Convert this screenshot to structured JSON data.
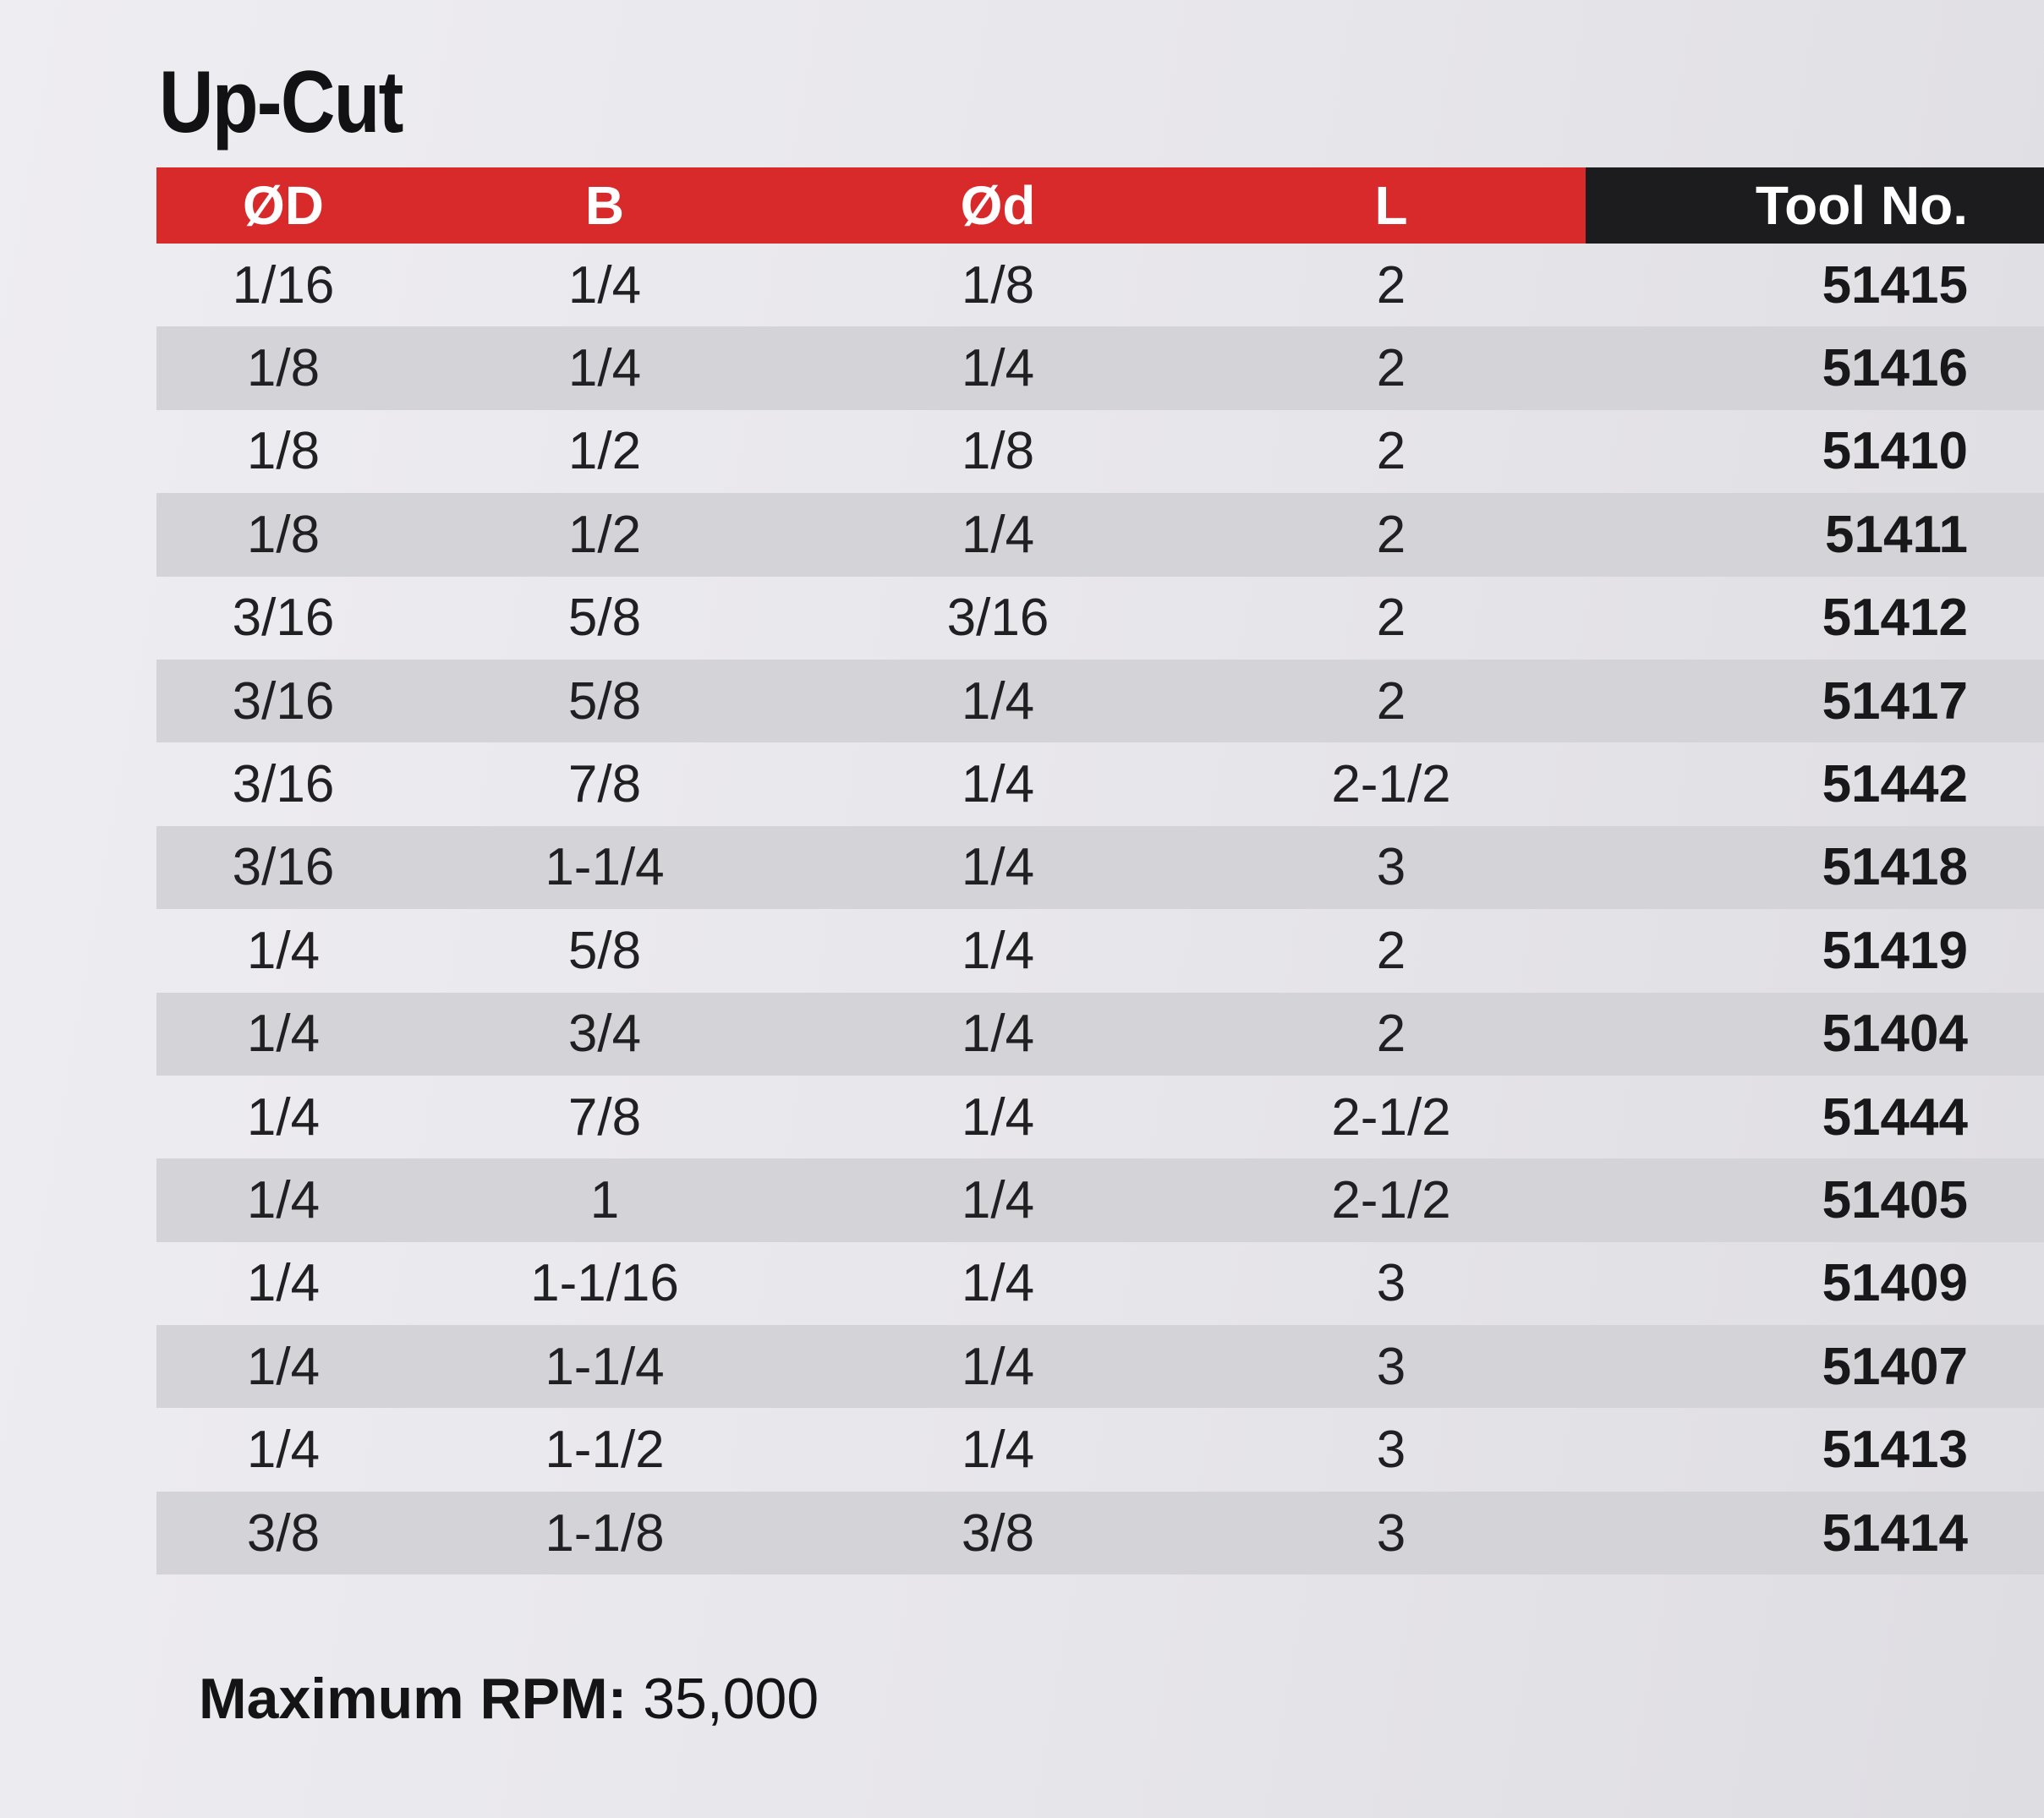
{
  "title": "Up-Cut",
  "table": {
    "headers": [
      "ØD",
      "B",
      "Ød",
      "L",
      "Tool No."
    ],
    "rows": [
      [
        "1/16",
        "1/4",
        "1/8",
        "2",
        "51415"
      ],
      [
        "1/8",
        "1/4",
        "1/4",
        "2",
        "51416"
      ],
      [
        "1/8",
        "1/2",
        "1/8",
        "2",
        "51410"
      ],
      [
        "1/8",
        "1/2",
        "1/4",
        "2",
        "51411"
      ],
      [
        "3/16",
        "5/8",
        "3/16",
        "2",
        "51412"
      ],
      [
        "3/16",
        "5/8",
        "1/4",
        "2",
        "51417"
      ],
      [
        "3/16",
        "7/8",
        "1/4",
        "2-1/2",
        "51442"
      ],
      [
        "3/16",
        "1-1/4",
        "1/4",
        "3",
        "51418"
      ],
      [
        "1/4",
        "5/8",
        "1/4",
        "2",
        "51419"
      ],
      [
        "1/4",
        "3/4",
        "1/4",
        "2",
        "51404"
      ],
      [
        "1/4",
        "7/8",
        "1/4",
        "2-1/2",
        "51444"
      ],
      [
        "1/4",
        "1",
        "1/4",
        "2-1/2",
        "51405"
      ],
      [
        "1/4",
        "1-1/16",
        "1/4",
        "3",
        "51409"
      ],
      [
        "1/4",
        "1-1/4",
        "1/4",
        "3",
        "51407"
      ],
      [
        "1/4",
        "1-1/2",
        "1/4",
        "3",
        "51413"
      ],
      [
        "3/8",
        "1-1/8",
        "3/8",
        "3",
        "51414"
      ]
    ]
  },
  "footer": {
    "label": "Maximum RPM:",
    "value": "35,000"
  },
  "colors": {
    "header_red": "#d82a2b",
    "header_dark": "#1c1c1e",
    "row_shade": "#d4d3d8"
  }
}
